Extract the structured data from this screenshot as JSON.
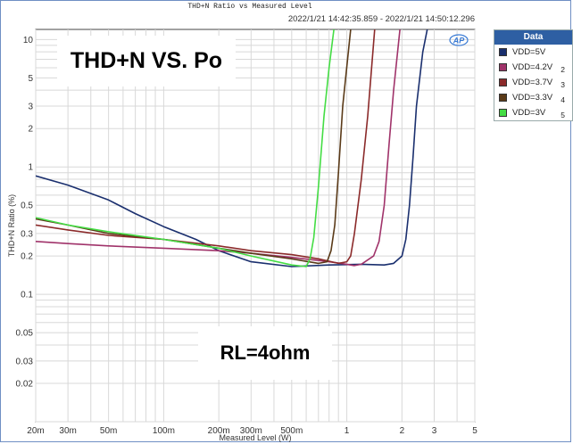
{
  "header": {
    "title": "THD+N Ratio vs Measured Level",
    "timestamp": "2022/1/21 14:42:35.859 - 2022/1/21 14:50:12.296",
    "logo": "AP"
  },
  "overlay": {
    "big_title": "THD+N VS. Po",
    "load": "RL=4ohm"
  },
  "legend": {
    "header": "Data",
    "items": [
      {
        "label": "VDD=5V",
        "num": "",
        "color": "#1a2f6e"
      },
      {
        "label": "VDD=4.2V",
        "num": "2",
        "color": "#a0336a"
      },
      {
        "label": "VDD=3.7V",
        "num": "3",
        "color": "#8b2a2a"
      },
      {
        "label": "VDD=3.3V",
        "num": "4",
        "color": "#5a3a18"
      },
      {
        "label": "VDD=3V",
        "num": "5",
        "color": "#44dd44"
      }
    ]
  },
  "chart_data": {
    "type": "line",
    "title": "THD+N Ratio vs Measured Level",
    "xlabel": "Measured Level (W)",
    "ylabel": "THD+N Ratio (%)",
    "xscale": "log",
    "yscale": "log",
    "xlim": [
      0.02,
      5
    ],
    "ylim": [
      0.01,
      12
    ],
    "grid": true,
    "legend_position": "right",
    "x_ticks": [
      {
        "v": 0.02,
        "label": "20m"
      },
      {
        "v": 0.03,
        "label": "30m"
      },
      {
        "v": 0.05,
        "label": "50m"
      },
      {
        "v": 0.1,
        "label": "100m"
      },
      {
        "v": 0.2,
        "label": "200m"
      },
      {
        "v": 0.3,
        "label": "300m"
      },
      {
        "v": 0.5,
        "label": "500m"
      },
      {
        "v": 1,
        "label": "1"
      },
      {
        "v": 2,
        "label": "2"
      },
      {
        "v": 3,
        "label": "3"
      },
      {
        "v": 5,
        "label": "5"
      }
    ],
    "y_ticks": [
      {
        "v": 10,
        "label": "10"
      },
      {
        "v": 5,
        "label": "5"
      },
      {
        "v": 3,
        "label": "3"
      },
      {
        "v": 2,
        "label": "2"
      },
      {
        "v": 1,
        "label": "1"
      },
      {
        "v": 0.5,
        "label": "0.5"
      },
      {
        "v": 0.3,
        "label": "0.3"
      },
      {
        "v": 0.2,
        "label": "0.2"
      },
      {
        "v": 0.1,
        "label": "0.1"
      },
      {
        "v": 0.05,
        "label": "0.05"
      },
      {
        "v": 0.03,
        "label": "0.03"
      },
      {
        "v": 0.02,
        "label": "0.02"
      }
    ],
    "series": [
      {
        "name": "VDD=5V",
        "color": "#1a2f6e",
        "points": [
          [
            0.02,
            0.85
          ],
          [
            0.03,
            0.72
          ],
          [
            0.05,
            0.55
          ],
          [
            0.07,
            0.43
          ],
          [
            0.1,
            0.34
          ],
          [
            0.15,
            0.27
          ],
          [
            0.2,
            0.22
          ],
          [
            0.3,
            0.18
          ],
          [
            0.5,
            0.165
          ],
          [
            0.8,
            0.17
          ],
          [
            1.2,
            0.172
          ],
          [
            1.6,
            0.17
          ],
          [
            1.8,
            0.175
          ],
          [
            2.0,
            0.2
          ],
          [
            2.1,
            0.27
          ],
          [
            2.2,
            0.5
          ],
          [
            2.3,
            1.2
          ],
          [
            2.4,
            3
          ],
          [
            2.6,
            8
          ],
          [
            2.75,
            12
          ]
        ]
      },
      {
        "name": "VDD=4.2V",
        "color": "#a0336a",
        "points": [
          [
            0.02,
            0.26
          ],
          [
            0.03,
            0.25
          ],
          [
            0.05,
            0.24
          ],
          [
            0.1,
            0.23
          ],
          [
            0.2,
            0.22
          ],
          [
            0.3,
            0.21
          ],
          [
            0.5,
            0.195
          ],
          [
            0.8,
            0.18
          ],
          [
            1.0,
            0.172
          ],
          [
            1.1,
            0.168
          ],
          [
            1.2,
            0.172
          ],
          [
            1.4,
            0.2
          ],
          [
            1.5,
            0.26
          ],
          [
            1.6,
            0.5
          ],
          [
            1.7,
            1.5
          ],
          [
            1.8,
            4
          ],
          [
            1.95,
            12
          ]
        ]
      },
      {
        "name": "VDD=3.7V",
        "color": "#8b2a2a",
        "points": [
          [
            0.02,
            0.35
          ],
          [
            0.03,
            0.32
          ],
          [
            0.05,
            0.29
          ],
          [
            0.1,
            0.27
          ],
          [
            0.2,
            0.24
          ],
          [
            0.3,
            0.22
          ],
          [
            0.5,
            0.205
          ],
          [
            0.7,
            0.19
          ],
          [
            0.9,
            0.175
          ],
          [
            1.0,
            0.18
          ],
          [
            1.05,
            0.2
          ],
          [
            1.1,
            0.3
          ],
          [
            1.2,
            0.8
          ],
          [
            1.3,
            2.5
          ],
          [
            1.42,
            12
          ]
        ]
      },
      {
        "name": "VDD=3.3V",
        "color": "#5a3a18",
        "points": [
          [
            0.02,
            0.39
          ],
          [
            0.03,
            0.35
          ],
          [
            0.05,
            0.3
          ],
          [
            0.1,
            0.27
          ],
          [
            0.2,
            0.23
          ],
          [
            0.3,
            0.21
          ],
          [
            0.5,
            0.19
          ],
          [
            0.7,
            0.175
          ],
          [
            0.78,
            0.18
          ],
          [
            0.82,
            0.22
          ],
          [
            0.86,
            0.35
          ],
          [
            0.9,
            0.9
          ],
          [
            0.95,
            3
          ],
          [
            1.05,
            12
          ]
        ]
      },
      {
        "name": "VDD=3V",
        "color": "#44dd44",
        "points": [
          [
            0.02,
            0.4
          ],
          [
            0.03,
            0.35
          ],
          [
            0.05,
            0.31
          ],
          [
            0.1,
            0.27
          ],
          [
            0.2,
            0.23
          ],
          [
            0.3,
            0.2
          ],
          [
            0.5,
            0.17
          ],
          [
            0.6,
            0.165
          ],
          [
            0.63,
            0.19
          ],
          [
            0.66,
            0.28
          ],
          [
            0.7,
            0.7
          ],
          [
            0.75,
            2.5
          ],
          [
            0.8,
            6
          ],
          [
            0.85,
            12
          ]
        ]
      }
    ]
  }
}
